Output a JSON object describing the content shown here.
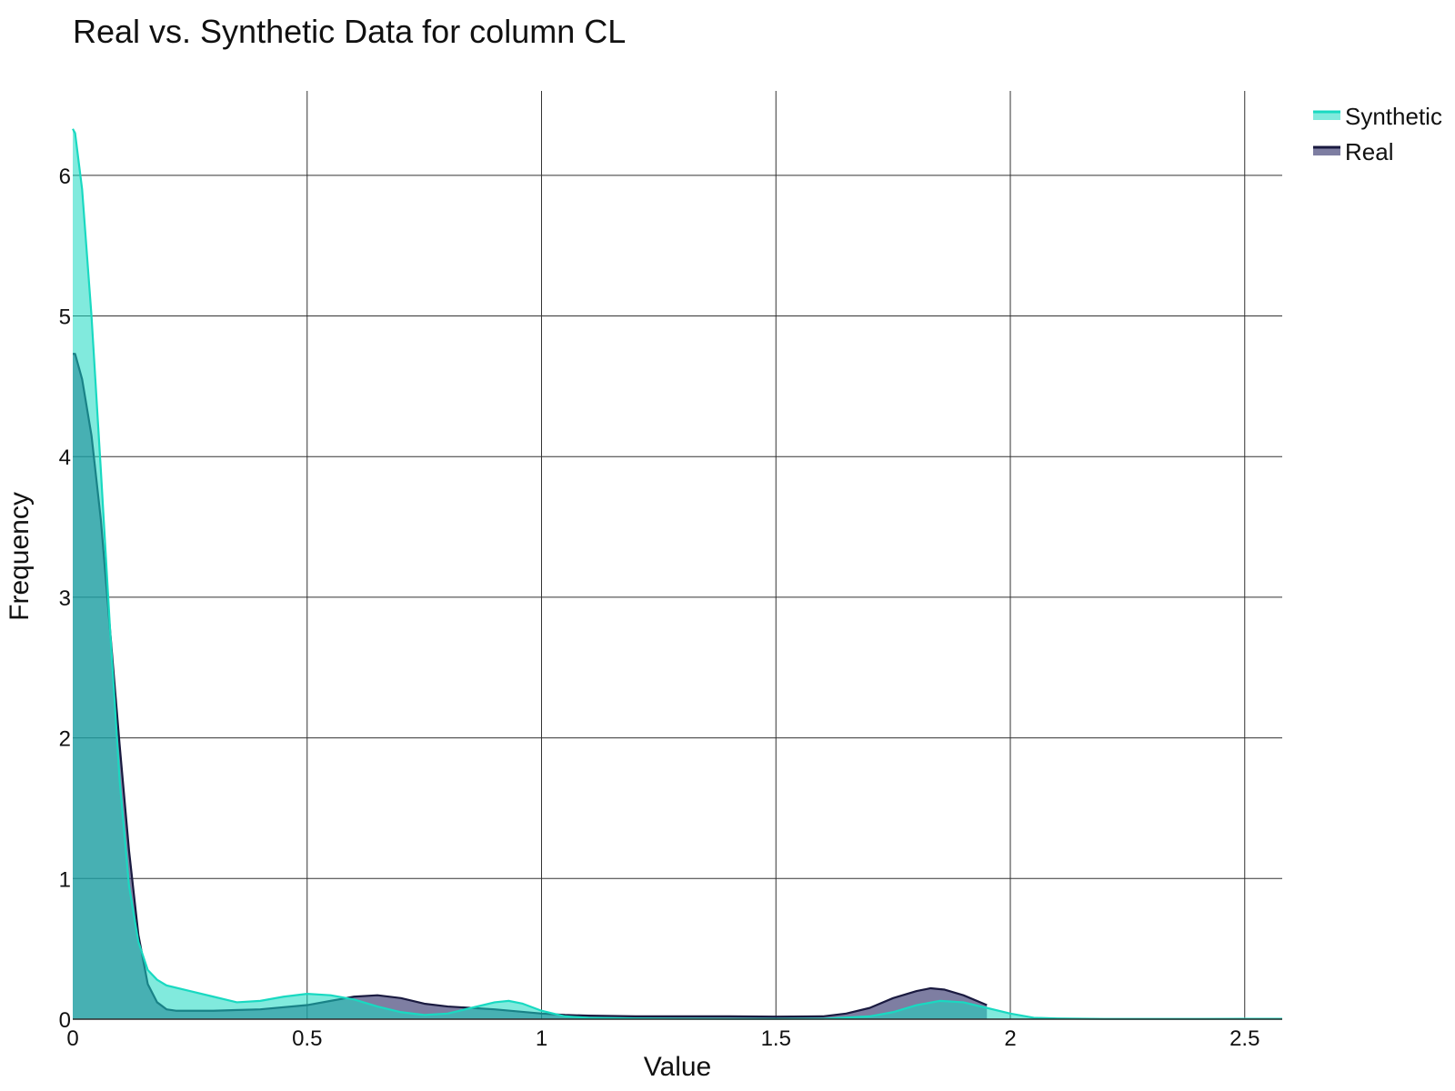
{
  "chart_data": {
    "type": "area",
    "title": "Real vs. Synthetic Data for column CL",
    "xlabel": "Value",
    "ylabel": "Frequency",
    "xlim": [
      0,
      2.58
    ],
    "ylim": [
      0,
      6.6
    ],
    "xticks": [
      0,
      0.5,
      1,
      1.5,
      2,
      2.5
    ],
    "xtick_labels": [
      "0",
      "0.5",
      "1",
      "1.5",
      "2",
      "2.5"
    ],
    "yticks": [
      0,
      1,
      2,
      3,
      4,
      5,
      6
    ],
    "ytick_labels": [
      "0",
      "1",
      "2",
      "3",
      "4",
      "5",
      "6"
    ],
    "grid": true,
    "legend_position": "top-right",
    "series": [
      {
        "name": "Synthetic",
        "line_color": "#19d9c1",
        "fill_color": "rgba(25,217,193,0.55)",
        "x": [
          0,
          0.005,
          0.02,
          0.04,
          0.06,
          0.08,
          0.1,
          0.12,
          0.14,
          0.16,
          0.18,
          0.2,
          0.25,
          0.3,
          0.35,
          0.4,
          0.45,
          0.5,
          0.55,
          0.6,
          0.65,
          0.7,
          0.75,
          0.8,
          0.85,
          0.9,
          0.93,
          0.96,
          1.0,
          1.05,
          1.1,
          1.2,
          1.3,
          1.4,
          1.5,
          1.6,
          1.7,
          1.75,
          1.8,
          1.85,
          1.9,
          1.95,
          2.0,
          2.05,
          2.1,
          2.2,
          2.3,
          2.4,
          2.5,
          2.58
        ],
        "y": [
          6.33,
          6.3,
          5.9,
          5.0,
          3.9,
          2.75,
          1.7,
          0.95,
          0.55,
          0.35,
          0.28,
          0.24,
          0.2,
          0.16,
          0.12,
          0.13,
          0.16,
          0.18,
          0.17,
          0.14,
          0.09,
          0.05,
          0.03,
          0.04,
          0.08,
          0.12,
          0.13,
          0.11,
          0.06,
          0.02,
          0.01,
          0.005,
          0.003,
          0.002,
          0.002,
          0.003,
          0.02,
          0.05,
          0.1,
          0.13,
          0.12,
          0.08,
          0.04,
          0.01,
          0.005,
          0.002,
          0.002,
          0.002,
          0.003,
          0.003
        ]
      },
      {
        "name": "Real",
        "line_color": "#1a1a40",
        "fill_color": "rgba(40,40,100,0.6)",
        "x": [
          0,
          0.005,
          0.02,
          0.04,
          0.06,
          0.08,
          0.1,
          0.12,
          0.14,
          0.16,
          0.18,
          0.2,
          0.22,
          0.25,
          0.3,
          0.4,
          0.5,
          0.55,
          0.6,
          0.65,
          0.7,
          0.75,
          0.8,
          0.9,
          1.0,
          1.05,
          1.1,
          1.2,
          1.3,
          1.4,
          1.5,
          1.6,
          1.65,
          1.7,
          1.75,
          1.8,
          1.83,
          1.86,
          1.9,
          1.95
        ],
        "y": [
          4.73,
          4.73,
          4.55,
          4.15,
          3.55,
          2.75,
          1.95,
          1.2,
          0.6,
          0.25,
          0.12,
          0.07,
          0.06,
          0.06,
          0.06,
          0.07,
          0.1,
          0.13,
          0.16,
          0.17,
          0.15,
          0.11,
          0.09,
          0.07,
          0.04,
          0.03,
          0.025,
          0.02,
          0.02,
          0.02,
          0.018,
          0.02,
          0.04,
          0.08,
          0.15,
          0.2,
          0.22,
          0.21,
          0.17,
          0.1
        ]
      }
    ]
  }
}
